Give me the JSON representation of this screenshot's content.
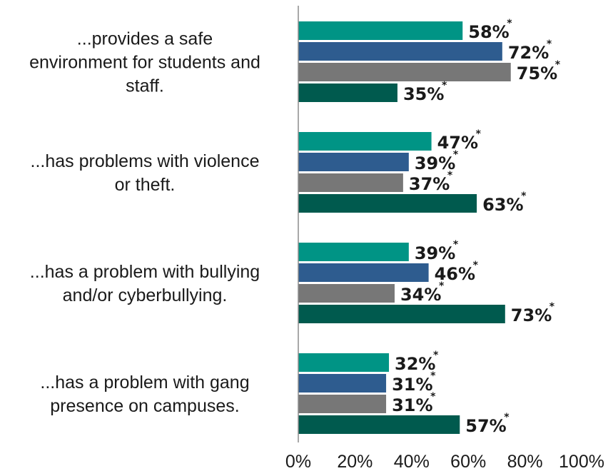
{
  "chart_data": {
    "type": "bar",
    "orientation": "horizontal",
    "categories": [
      [
        "...provides a safe",
        "environment for students and",
        "staff."
      ],
      [
        "...has problems with violence",
        "or theft."
      ],
      [
        "...has a problem with bullying",
        "and/or cyberbullying."
      ],
      [
        "...has a problem with gang",
        "presence on campuses."
      ]
    ],
    "series": [
      {
        "color": "#009485",
        "values": [
          58,
          47,
          39,
          32
        ]
      },
      {
        "color": "#2e5c8f",
        "values": [
          72,
          39,
          46,
          31
        ]
      },
      {
        "color": "#777777",
        "values": [
          75,
          37,
          34,
          31
        ]
      },
      {
        "color": "#005a4e",
        "values": [
          35,
          63,
          73,
          57
        ]
      }
    ],
    "value_suffix": "%",
    "significance_marker": "*",
    "xlim": [
      0,
      100
    ],
    "x_ticks": [
      "0%",
      "20%",
      "40%",
      "60%",
      "80%",
      "100%"
    ],
    "grid": false,
    "legend": "none"
  }
}
